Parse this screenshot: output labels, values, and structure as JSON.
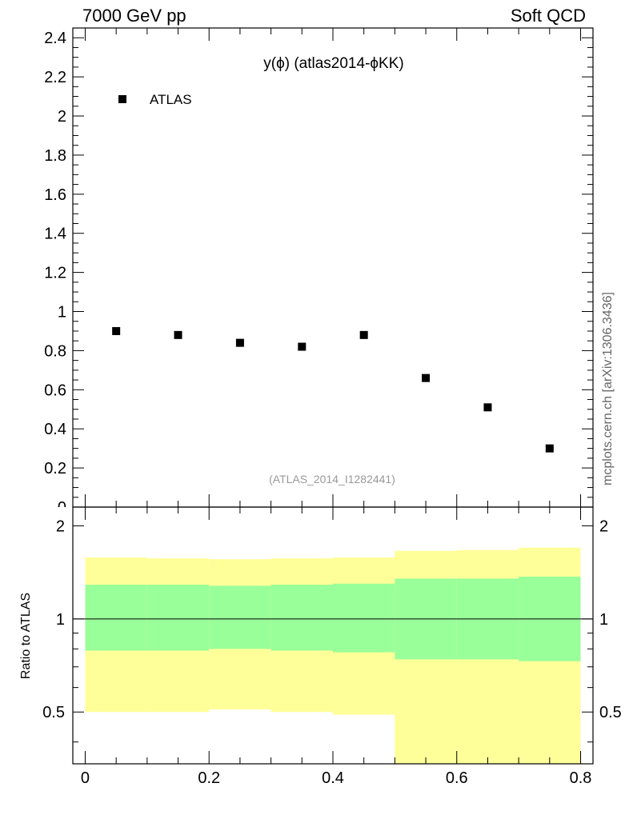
{
  "header": {
    "left_label": "7000 GeV pp",
    "right_label": "Soft QCD"
  },
  "side_label": "mcplots.cern.ch [arXiv:1306.3436]",
  "analysis_label": "(ATLAS_2014_I1282441)",
  "colors": {
    "yellow_band": "#ffff99",
    "green_band": "#99ff99",
    "analysis_label": "#999999",
    "side_label": "#666666"
  },
  "chart_data": [
    {
      "type": "scatter",
      "title": "y(ϕ) (atlas2014-ϕKK)",
      "legend": {
        "entries": [
          "ATLAS"
        ],
        "placement": "top-left"
      },
      "series": [
        {
          "name": "ATLAS",
          "x": [
            0.05,
            0.15,
            0.25,
            0.35,
            0.45,
            0.55,
            0.65,
            0.75
          ],
          "y": [
            0.9,
            0.88,
            0.84,
            0.82,
            0.88,
            0.66,
            0.51,
            0.3
          ]
        }
      ],
      "xlim": [
        -0.02,
        0.82
      ],
      "ylim": [
        0,
        2.45
      ],
      "yticks": [
        0.2,
        0.4,
        0.6,
        0.8,
        1,
        1.2,
        1.4,
        1.6,
        1.8,
        2,
        2.2,
        2.4
      ],
      "ytick_labels": [
        "0.2",
        "0.4",
        "0.6",
        "0.8",
        "1",
        "1.2",
        "1.4",
        "1.6",
        "1.8",
        "2",
        "2.2",
        "2.4"
      ],
      "bottom_tick_label_partial": "0"
    },
    {
      "type": "area",
      "ylabel": "Ratio to ATLAS",
      "xlim": [
        -0.02,
        0.82
      ],
      "ylim": [
        0.34,
        2.3
      ],
      "xticks": [
        0,
        0.2,
        0.4,
        0.6,
        0.8
      ],
      "xtick_labels": [
        "0",
        "0.2",
        "0.4",
        "0.6",
        "0.8"
      ],
      "yticks": [
        0.5,
        1,
        2
      ],
      "ytick_labels": [
        "0.5",
        "1",
        "2"
      ],
      "reference_line": 1,
      "bins": [
        {
          "x": [
            0.0,
            0.1
          ],
          "stat_low": 0.79,
          "stat_high": 1.29,
          "tot_low": 0.5,
          "tot_high": 1.58
        },
        {
          "x": [
            0.1,
            0.2
          ],
          "stat_low": 0.79,
          "stat_high": 1.29,
          "tot_low": 0.5,
          "tot_high": 1.57
        },
        {
          "x": [
            0.2,
            0.3
          ],
          "stat_low": 0.8,
          "stat_high": 1.28,
          "tot_low": 0.51,
          "tot_high": 1.56
        },
        {
          "x": [
            0.3,
            0.4
          ],
          "stat_low": 0.79,
          "stat_high": 1.29,
          "tot_low": 0.5,
          "tot_high": 1.57
        },
        {
          "x": [
            0.4,
            0.5
          ],
          "stat_low": 0.78,
          "stat_high": 1.3,
          "tot_low": 0.49,
          "tot_high": 1.58
        },
        {
          "x": [
            0.5,
            0.6
          ],
          "stat_low": 0.74,
          "stat_high": 1.35,
          "tot_low": 0.34,
          "tot_high": 1.66
        },
        {
          "x": [
            0.6,
            0.7
          ],
          "stat_low": 0.74,
          "stat_high": 1.35,
          "tot_low": 0.34,
          "tot_high": 1.67
        },
        {
          "x": [
            0.7,
            0.8
          ],
          "stat_low": 0.73,
          "stat_high": 1.37,
          "tot_low": 0.34,
          "tot_high": 1.7
        }
      ]
    }
  ]
}
